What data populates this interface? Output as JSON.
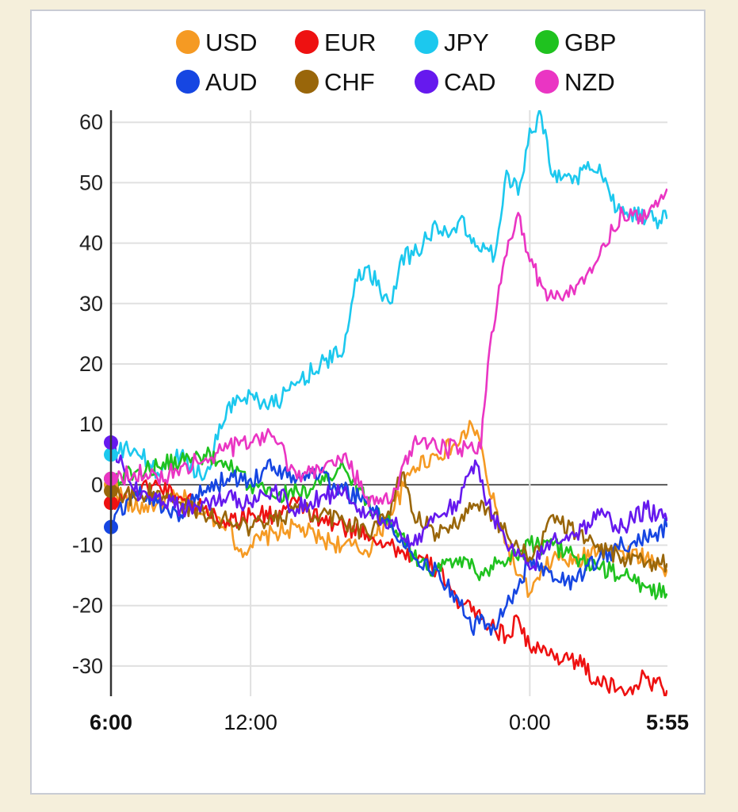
{
  "chart_data": {
    "type": "line",
    "title": "",
    "xlabel": "",
    "ylabel": "",
    "ylim": [
      -35,
      62
    ],
    "yticks": [
      60,
      50,
      40,
      30,
      20,
      10,
      0,
      -10,
      -20,
      -30
    ],
    "x_range_hours": [
      0,
      23.9167
    ],
    "x_ticks": [
      {
        "label": "6:00",
        "hours": 0,
        "bold": true
      },
      {
        "label": "12:00",
        "hours": 6,
        "bold": false
      },
      {
        "label": "0:00",
        "hours": 18,
        "bold": false
      },
      {
        "label": "5:55",
        "hours": 23.9167,
        "bold": true
      }
    ],
    "grid": true,
    "legend_position": "top",
    "series": [
      {
        "name": "USD",
        "color": "#f59a23",
        "x": [
          0,
          1,
          2,
          3,
          4,
          5,
          5.5,
          6,
          7,
          8,
          9,
          10,
          11,
          12,
          13,
          14,
          15,
          15.5,
          15.8,
          16.2,
          17,
          17.5,
          18,
          19,
          20,
          21,
          22,
          23,
          23.9
        ],
        "y": [
          0,
          -4,
          -3,
          -2,
          -5,
          -6,
          -11,
          -10,
          -8,
          -7,
          -9,
          -10,
          -11,
          -5,
          3,
          5,
          7,
          10,
          8,
          0,
          -10,
          -15,
          -18,
          -12,
          -13,
          -10,
          -11,
          -12,
          -14
        ]
      },
      {
        "name": "EUR",
        "color": "#ee1111",
        "x": [
          0,
          1,
          2,
          3,
          4,
          5,
          6,
          7,
          8,
          9,
          10,
          11,
          12,
          13,
          14,
          14.5,
          15,
          15.5,
          16,
          16.5,
          17,
          17.5,
          18,
          19,
          20,
          21,
          22,
          23,
          23.9
        ],
        "y": [
          -3,
          -1,
          0,
          -2,
          -4,
          -6,
          -5,
          -5,
          -3,
          -6,
          -7,
          -8,
          -10,
          -12,
          -14,
          -16,
          -20,
          -21,
          -22,
          -24,
          -25,
          -22,
          -27,
          -28,
          -29,
          -33,
          -34,
          -32,
          -34
        ]
      },
      {
        "name": "JPY",
        "color": "#1cc8ee",
        "x": [
          0,
          1,
          2,
          3,
          4,
          5,
          6,
          7,
          8,
          9,
          10,
          10.5,
          11,
          12,
          12.5,
          13,
          14,
          14.5,
          15,
          15.5,
          16,
          16.5,
          17,
          17.5,
          18,
          18.5,
          19,
          20,
          21,
          21.5,
          22,
          23,
          23.9
        ],
        "y": [
          5,
          6,
          2,
          5,
          1,
          13,
          15,
          13,
          17,
          20,
          22,
          34,
          36,
          30,
          38,
          38,
          43,
          41,
          44,
          40,
          40,
          38,
          52,
          48,
          59,
          61,
          51,
          51,
          53,
          47,
          46,
          44,
          44
        ]
      },
      {
        "name": "GBP",
        "color": "#1fc21f",
        "x": [
          0,
          1,
          2,
          3,
          4,
          5,
          6,
          7,
          8,
          9,
          10,
          11,
          12,
          13,
          14,
          15,
          16,
          16.5,
          17,
          18,
          19,
          20,
          21,
          22,
          23,
          23.9
        ],
        "y": [
          1,
          2,
          3,
          4,
          5,
          3,
          0,
          -2,
          -1,
          0,
          3,
          -3,
          -6,
          -12,
          -14,
          -12,
          -15,
          -12,
          -13,
          -10,
          -10,
          -12,
          -14,
          -15,
          -17,
          -18
        ]
      },
      {
        "name": "AUD",
        "color": "#1646e2",
        "x": [
          0,
          1,
          2,
          3,
          4,
          5,
          6,
          7,
          8,
          9,
          10,
          11,
          12,
          13,
          14,
          15,
          15.5,
          16,
          16.5,
          17,
          17.5,
          18,
          18.5,
          19,
          20,
          21,
          22,
          23,
          23.9
        ],
        "y": [
          -7,
          -1,
          -3,
          -5,
          -1,
          1,
          1,
          3,
          1,
          2,
          -1,
          -3,
          -7,
          -12,
          -14,
          -20,
          -24,
          -22,
          -24,
          -20,
          -17,
          -12,
          -13,
          -16,
          -16,
          -12,
          -10,
          -9,
          -7
        ]
      },
      {
        "name": "CHF",
        "color": "#99660a",
        "x": [
          0,
          1,
          2,
          3,
          4,
          5,
          6,
          7,
          8,
          9,
          10,
          11,
          12,
          12.5,
          13,
          14,
          15,
          15.5,
          16,
          17,
          18,
          18.5,
          19,
          20,
          21,
          22,
          23,
          23.9
        ],
        "y": [
          -1,
          -2,
          -1,
          -3,
          -5,
          -6,
          -7,
          -6,
          -4,
          -5,
          -6,
          -8,
          -5,
          2,
          -5,
          -8,
          -6,
          -4,
          -3,
          -8,
          -12,
          -10,
          -5,
          -8,
          -11,
          -12,
          -13,
          -13
        ]
      },
      {
        "name": "CAD",
        "color": "#6619ee",
        "x": [
          0,
          1,
          2,
          3,
          4,
          5,
          6,
          7,
          8,
          9,
          10,
          11,
          12,
          13,
          13.5,
          14,
          15,
          15.5,
          15.8,
          16.2,
          17,
          18,
          19,
          20,
          21,
          22,
          23,
          23.9
        ],
        "y": [
          7,
          -1,
          -2,
          -4,
          -3,
          -2,
          -3,
          -1,
          -4,
          -2,
          -1,
          -5,
          -6,
          -10,
          -7,
          -5,
          -3,
          3,
          3,
          -3,
          -10,
          -14,
          -9,
          -8,
          -5,
          -7,
          -4,
          -6
        ]
      },
      {
        "name": "NZD",
        "color": "#ea35c3",
        "x": [
          0,
          1,
          2,
          3,
          4,
          5,
          6,
          7,
          8,
          9,
          10,
          11,
          12,
          13,
          14,
          15,
          15.5,
          15.9,
          16.2,
          16.6,
          17,
          17.5,
          18,
          18.5,
          19,
          20,
          21,
          22,
          23,
          23.9
        ],
        "y": [
          1,
          2,
          1,
          3,
          4,
          6,
          7,
          8,
          1,
          2,
          5,
          -2,
          -3,
          7,
          6,
          6,
          7,
          6,
          20,
          30,
          38,
          45,
          37,
          33,
          31,
          33,
          38,
          45,
          44,
          49
        ]
      }
    ]
  }
}
